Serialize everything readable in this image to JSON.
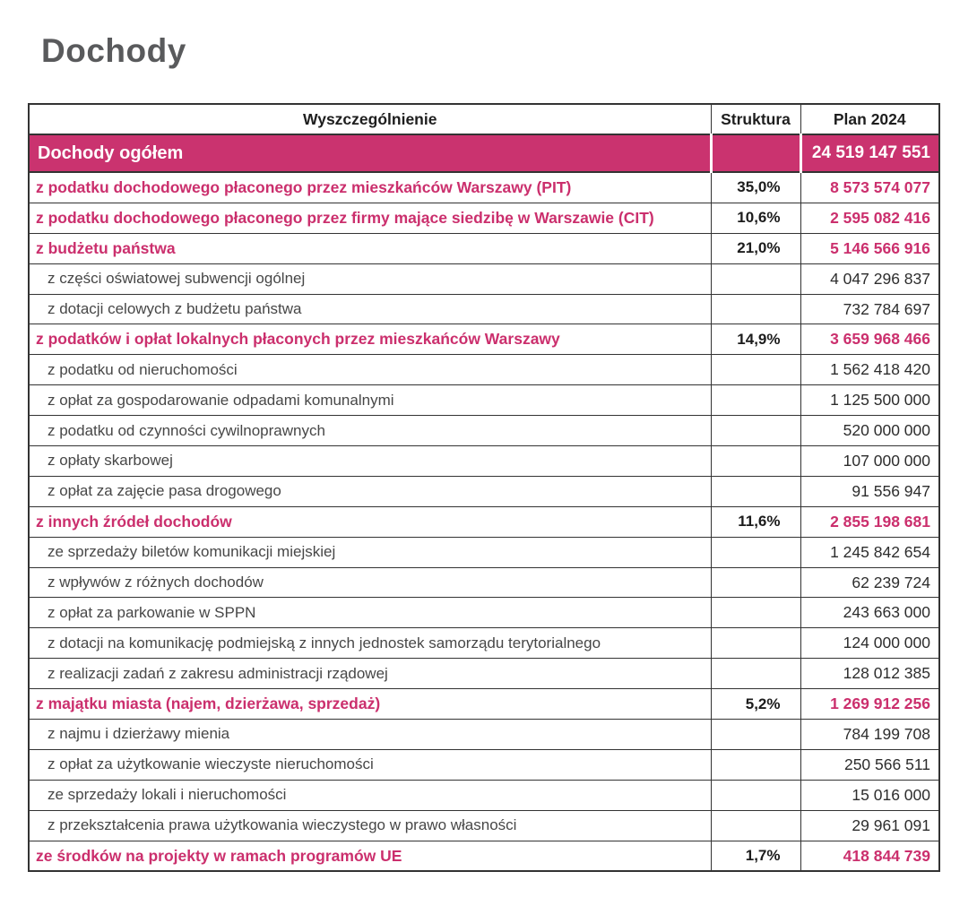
{
  "page": {
    "title": "Dochody"
  },
  "colors": {
    "accent_band_background": "#ca336f",
    "accent_text": "#cb2f6d",
    "band_text": "#ffffff",
    "title_text": "#595a5c",
    "border": "#333333"
  },
  "table": {
    "columns": {
      "spec": "Wyszczególnienie",
      "structure": "Struktura",
      "plan": "Plan 2024"
    },
    "total_row": {
      "label": "Dochody ogółem",
      "structure": "",
      "plan": "24 519 147 551"
    },
    "rows": [
      {
        "level": "main",
        "label": "z podatku dochodowego płaconego przez mieszkańców Warszawy  (PIT)",
        "structure": "35,0%",
        "plan": "8 573 574 077"
      },
      {
        "level": "main",
        "label": "z podatku dochodowego płaconego przez firmy mające siedzibę w Warszawie  (CIT)",
        "structure": "10,6%",
        "plan": "2 595 082 416"
      },
      {
        "level": "main",
        "label": "z budżetu państwa",
        "structure": "21,0%",
        "plan": "5 146 566 916"
      },
      {
        "level": "sub",
        "label": "z części oświatowej subwencji ogólnej",
        "structure": "",
        "plan": "4 047 296 837"
      },
      {
        "level": "sub",
        "label": "z dotacji celowych z budżetu państwa",
        "structure": "",
        "plan": "732 784 697"
      },
      {
        "level": "main",
        "label": "z podatków i opłat lokalnych płaconych przez mieszkańców Warszawy",
        "structure": "14,9%",
        "plan": "3 659 968 466"
      },
      {
        "level": "sub",
        "label": "z podatku od nieruchomości",
        "structure": "",
        "plan": "1 562 418 420"
      },
      {
        "level": "sub",
        "label": "z opłat za gospodarowanie odpadami komunalnymi",
        "structure": "",
        "plan": "1 125 500 000"
      },
      {
        "level": "sub",
        "label": "z podatku od czynności cywilnoprawnych",
        "structure": "",
        "plan": "520 000 000"
      },
      {
        "level": "sub",
        "label": "z opłaty skarbowej",
        "structure": "",
        "plan": "107 000 000"
      },
      {
        "level": "sub",
        "label": "z opłat za zajęcie pasa drogowego",
        "structure": "",
        "plan": "91 556 947"
      },
      {
        "level": "main",
        "label": "z innych źródeł dochodów",
        "structure": "11,6%",
        "plan": "2 855 198 681"
      },
      {
        "level": "sub",
        "label": "ze sprzedaży biletów komunikacji miejskiej",
        "structure": "",
        "plan": "1 245 842 654"
      },
      {
        "level": "sub",
        "label": "z wpływów z różnych dochodów",
        "structure": "",
        "plan": "62 239 724"
      },
      {
        "level": "sub",
        "label": "z opłat za parkowanie w SPPN",
        "structure": "",
        "plan": "243 663 000"
      },
      {
        "level": "sub",
        "label": "z dotacji na komunikację podmiejską z innych jednostek samorządu terytorialnego",
        "structure": "",
        "plan": "124 000 000"
      },
      {
        "level": "sub",
        "label": "z realizacji zadań z zakresu administracji rządowej",
        "structure": "",
        "plan": "128 012 385"
      },
      {
        "level": "main",
        "label": "z majątku miasta (najem, dzierżawa, sprzedaż)",
        "structure": "5,2%",
        "plan": "1 269 912 256"
      },
      {
        "level": "sub",
        "label": "z najmu i dzierżawy mienia",
        "structure": "",
        "plan": "784 199 708"
      },
      {
        "level": "sub",
        "label": "z opłat za użytkowanie wieczyste nieruchomości",
        "structure": "",
        "plan": "250 566 511"
      },
      {
        "level": "sub",
        "label": "ze sprzedaży lokali i nieruchomości",
        "structure": "",
        "plan": "15 016 000"
      },
      {
        "level": "sub",
        "label": "z przekształcenia prawa użytkowania wieczystego w prawo własności",
        "structure": "",
        "plan": "29 961 091"
      },
      {
        "level": "main",
        "label": "ze środków na projekty w ramach programów UE",
        "structure": "1,7%",
        "plan": "418 844 739"
      }
    ]
  }
}
